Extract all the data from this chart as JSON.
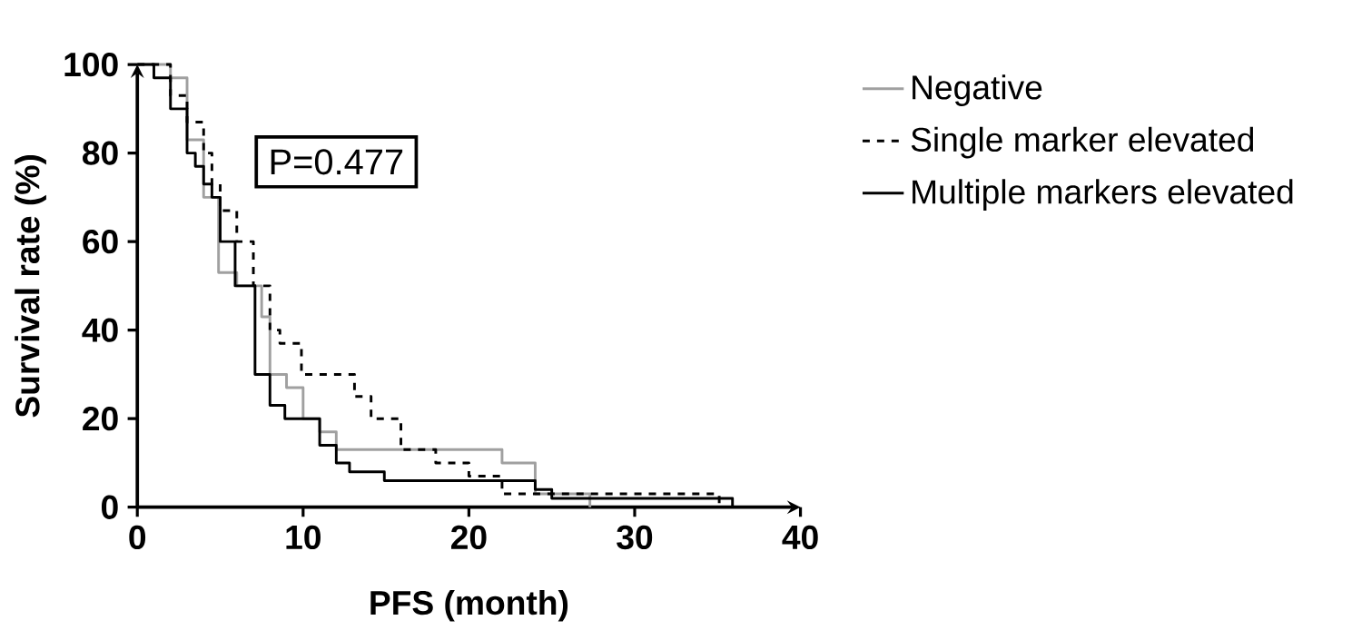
{
  "chart_data": {
    "type": "step",
    "xlabel": "PFS (month)",
    "ylabel": "Survival rate (%)",
    "xlim": [
      0,
      40
    ],
    "ylim": [
      0,
      100
    ],
    "xticks": [
      0,
      10,
      20,
      30,
      40
    ],
    "yticks": [
      0,
      20,
      40,
      60,
      80,
      100
    ],
    "grid": false,
    "legend": "right",
    "annotations": [
      "P=0.477"
    ],
    "series": [
      {
        "name": "Negative",
        "color": "#a0a0a0",
        "line_style": "solid",
        "x": [
          0,
          2,
          3,
          4,
          4.9,
          6,
          7.5,
          8,
          9,
          10,
          11,
          12,
          22,
          24,
          27.3
        ],
        "values": [
          100,
          97,
          83,
          70,
          53,
          50,
          43,
          30,
          27,
          20,
          17,
          13,
          10,
          3,
          0
        ]
      },
      {
        "name": "Single marker elevated",
        "color": "#000000",
        "line_style": "dashed",
        "x": [
          0,
          2,
          3,
          4,
          4.5,
          5,
          6,
          7,
          8,
          8.6,
          9.9,
          13.1,
          14.1,
          15.9,
          18,
          20,
          22,
          35.1
        ],
        "values": [
          100,
          93,
          87,
          80,
          73,
          67,
          60,
          50,
          40,
          37,
          30,
          25,
          20,
          13,
          10,
          7,
          3,
          0
        ]
      },
      {
        "name": "Multiple markers elevated",
        "color": "#000000",
        "line_style": "solid",
        "x": [
          0,
          1,
          2,
          3,
          3.5,
          4,
          4.5,
          5,
          5.9,
          7.1,
          8,
          8.9,
          11,
          12,
          12.8,
          14.9,
          24,
          25,
          35.9
        ],
        "values": [
          100,
          97,
          90,
          80,
          77,
          73,
          70,
          60,
          50,
          30,
          23,
          20,
          14,
          10,
          8,
          6,
          4,
          2,
          0
        ]
      }
    ]
  }
}
